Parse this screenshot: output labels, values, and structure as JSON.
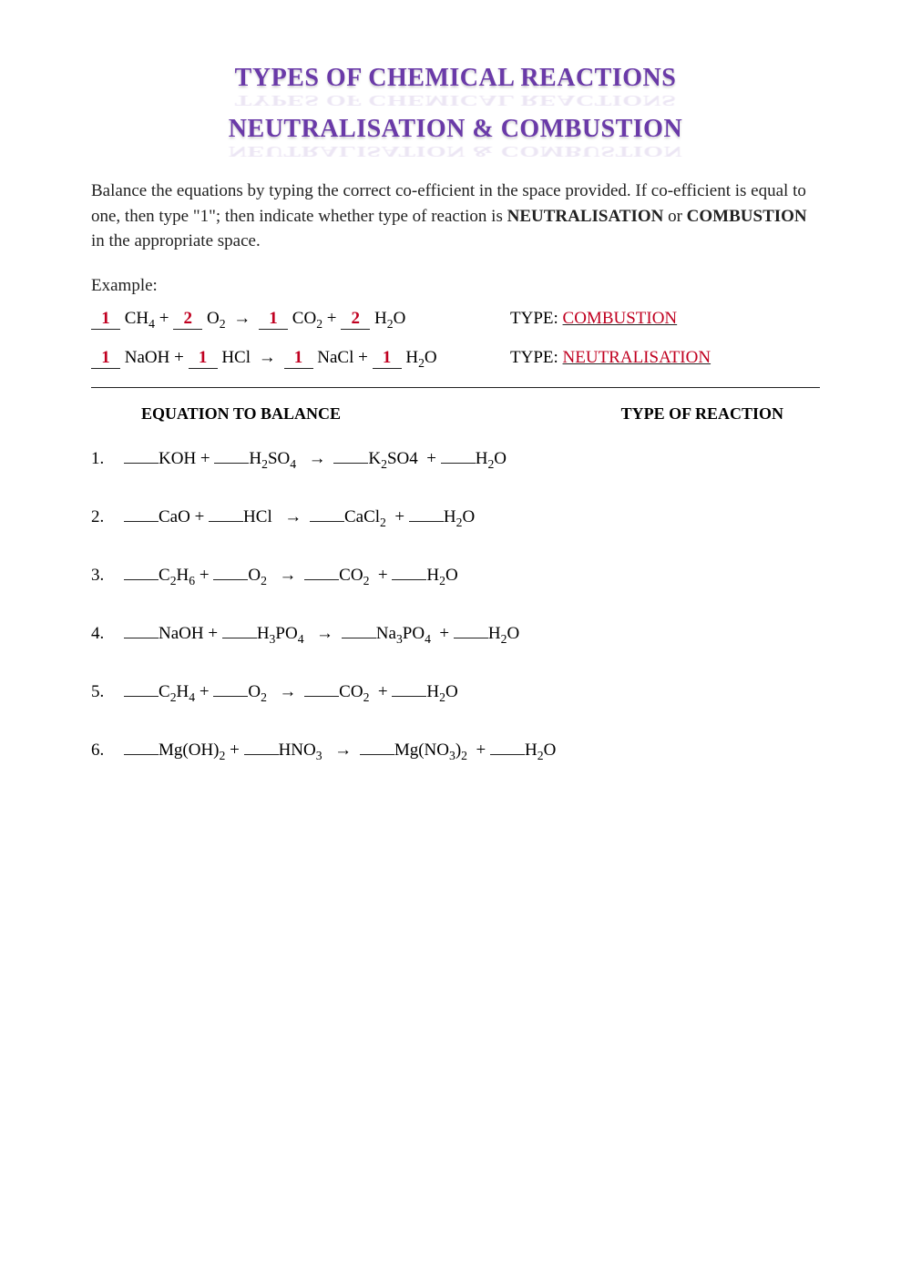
{
  "title": {
    "line1": "TYPES OF CHEMICAL REACTIONS",
    "line2": "NEUTRALISATION & COMBUSTION",
    "color": "#6a3aa8"
  },
  "instructions": {
    "text1": "Balance the equations by typing the correct co-efficient in the space provided. If co-efficient is equal to one, then type \"1\"; then indicate whether type of reaction is ",
    "bold1": "NEUTRALISATION",
    "text2": " or ",
    "bold2": "COMBUSTION",
    "text3": " in the appropriate space."
  },
  "example_label": "Example:",
  "type_label": "TYPE:",
  "examples": [
    {
      "coefs": [
        "1",
        "2",
        "1",
        "2"
      ],
      "terms": [
        "CH₄",
        "O₂",
        "CO₂",
        "H₂O"
      ],
      "type": "COMBUSTION"
    },
    {
      "coefs": [
        "1",
        "1",
        "1",
        "1"
      ],
      "terms": [
        "NaOH",
        "HCl",
        "NaCl",
        "H₂O"
      ],
      "type": "NEUTRALISATION"
    }
  ],
  "columns": {
    "left": "EQUATION TO BALANCE",
    "right": "TYPE OF REACTION"
  },
  "problems": [
    {
      "n": "1.",
      "t": [
        "KOH",
        "H₂SO₄",
        "K₂SO4",
        "H₂O"
      ]
    },
    {
      "n": "2.",
      "t": [
        "CaO",
        "HCl",
        "CaCl₂",
        "H₂O"
      ]
    },
    {
      "n": "3.",
      "t": [
        "C₂H₆",
        "O₂",
        "CO₂",
        "H₂O"
      ]
    },
    {
      "n": "4.",
      "t": [
        "NaOH",
        "H₃PO₄",
        "Na₃PO₄",
        "H₂O"
      ]
    },
    {
      "n": "5.",
      "t": [
        "C₂H₄",
        "O₂",
        "CO₂",
        "H₂O"
      ]
    },
    {
      "n": "6.",
      "t": [
        "Mg(OH)₂",
        "HNO₃",
        "Mg(NO₃)₂",
        "H₂O"
      ]
    }
  ]
}
